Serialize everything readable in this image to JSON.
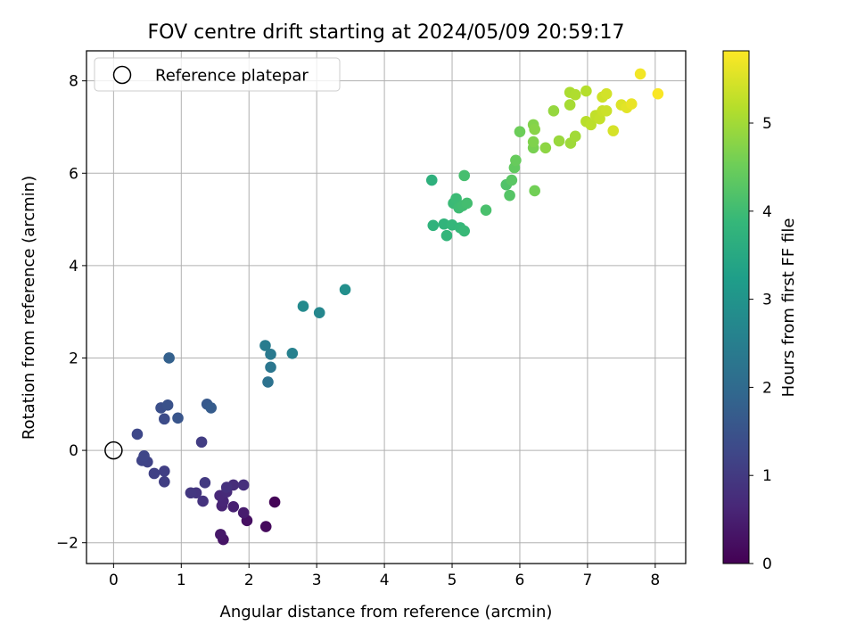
{
  "chart_data": {
    "type": "scatter",
    "title": "FOV centre drift starting at 2024/05/09 20:59:17",
    "xlabel": "Angular distance from reference (arcmin)",
    "ylabel": "Rotation from reference (arcmin)",
    "xlim": [
      -0.4,
      8.45
    ],
    "ylim": [
      -2.45,
      8.65
    ],
    "xticks": [
      0,
      1,
      2,
      3,
      4,
      5,
      6,
      7,
      8
    ],
    "yticks": [
      -2,
      0,
      2,
      4,
      6,
      8
    ],
    "xtick_labels": [
      "0",
      "1",
      "2",
      "3",
      "4",
      "5",
      "6",
      "7",
      "8"
    ],
    "ytick_labels": [
      "−2",
      "0",
      "2",
      "4",
      "6",
      "8"
    ],
    "grid": true,
    "legend": {
      "position": "top-left",
      "entries": [
        "Reference platepar"
      ]
    },
    "reference_point": {
      "x": 0,
      "y": 0
    },
    "colorbar": {
      "label": "Hours from first FF file",
      "colormap": "viridis",
      "range": [
        0,
        5.82
      ],
      "ticks": [
        0,
        1,
        2,
        3,
        4,
        5
      ],
      "tick_labels": [
        "0",
        "1",
        "2",
        "3",
        "4",
        "5"
      ]
    },
    "points": [
      {
        "x": 2.38,
        "y": -1.12,
        "t": 0.05
      },
      {
        "x": 2.25,
        "y": -1.65,
        "t": 0.15
      },
      {
        "x": 1.97,
        "y": -1.52,
        "t": 0.25
      },
      {
        "x": 1.62,
        "y": -1.93,
        "t": 0.32
      },
      {
        "x": 1.58,
        "y": -1.82,
        "t": 0.38
      },
      {
        "x": 1.92,
        "y": -1.35,
        "t": 0.45
      },
      {
        "x": 1.77,
        "y": -1.22,
        "t": 0.52
      },
      {
        "x": 1.6,
        "y": -1.2,
        "t": 0.58
      },
      {
        "x": 1.62,
        "y": -1.1,
        "t": 0.62
      },
      {
        "x": 1.57,
        "y": -0.98,
        "t": 0.66
      },
      {
        "x": 1.67,
        "y": -0.9,
        "t": 0.7
      },
      {
        "x": 1.77,
        "y": -0.75,
        "t": 0.74
      },
      {
        "x": 1.92,
        "y": -0.75,
        "t": 0.78
      },
      {
        "x": 1.67,
        "y": -0.8,
        "t": 0.82
      },
      {
        "x": 1.32,
        "y": -1.1,
        "t": 0.86
      },
      {
        "x": 1.22,
        "y": -0.92,
        "t": 0.9
      },
      {
        "x": 1.14,
        "y": -0.92,
        "t": 0.95
      },
      {
        "x": 1.35,
        "y": -0.7,
        "t": 1.0
      },
      {
        "x": 1.3,
        "y": 0.18,
        "t": 1.05
      },
      {
        "x": 0.75,
        "y": -0.68,
        "t": 1.08
      },
      {
        "x": 0.75,
        "y": -0.45,
        "t": 1.1
      },
      {
        "x": 0.6,
        "y": -0.5,
        "t": 1.14
      },
      {
        "x": 0.5,
        "y": -0.25,
        "t": 1.17
      },
      {
        "x": 0.42,
        "y": -0.22,
        "t": 1.2
      },
      {
        "x": 0.45,
        "y": -0.12,
        "t": 1.24
      },
      {
        "x": 0.35,
        "y": 0.35,
        "t": 1.28
      },
      {
        "x": 0.75,
        "y": 0.68,
        "t": 1.35
      },
      {
        "x": 0.7,
        "y": 0.92,
        "t": 1.42
      },
      {
        "x": 0.8,
        "y": 0.98,
        "t": 1.48
      },
      {
        "x": 0.95,
        "y": 0.7,
        "t": 1.54
      },
      {
        "x": 1.38,
        "y": 1.0,
        "t": 1.62
      },
      {
        "x": 1.44,
        "y": 0.92,
        "t": 1.7
      },
      {
        "x": 0.82,
        "y": 2.0,
        "t": 1.8
      },
      {
        "x": 2.28,
        "y": 1.48,
        "t": 2.2
      },
      {
        "x": 2.32,
        "y": 1.8,
        "t": 2.28
      },
      {
        "x": 2.32,
        "y": 2.08,
        "t": 2.36
      },
      {
        "x": 2.24,
        "y": 2.27,
        "t": 2.44
      },
      {
        "x": 2.64,
        "y": 2.1,
        "t": 2.55
      },
      {
        "x": 3.04,
        "y": 2.98,
        "t": 2.7
      },
      {
        "x": 2.8,
        "y": 3.12,
        "t": 2.78
      },
      {
        "x": 3.42,
        "y": 3.48,
        "t": 2.88
      },
      {
        "x": 4.7,
        "y": 5.85,
        "t": 3.7
      },
      {
        "x": 4.72,
        "y": 4.87,
        "t": 3.75
      },
      {
        "x": 4.88,
        "y": 4.9,
        "t": 3.78
      },
      {
        "x": 4.92,
        "y": 4.65,
        "t": 3.82
      },
      {
        "x": 5.0,
        "y": 4.88,
        "t": 3.85
      },
      {
        "x": 5.12,
        "y": 4.82,
        "t": 3.88
      },
      {
        "x": 5.18,
        "y": 4.75,
        "t": 3.91
      },
      {
        "x": 5.02,
        "y": 5.35,
        "t": 3.94
      },
      {
        "x": 5.06,
        "y": 5.45,
        "t": 3.96
      },
      {
        "x": 5.1,
        "y": 5.25,
        "t": 3.99
      },
      {
        "x": 5.16,
        "y": 5.3,
        "t": 4.02
      },
      {
        "x": 5.22,
        "y": 5.35,
        "t": 4.05
      },
      {
        "x": 5.18,
        "y": 5.95,
        "t": 4.08
      },
      {
        "x": 5.5,
        "y": 5.2,
        "t": 4.12
      },
      {
        "x": 5.8,
        "y": 5.75,
        "t": 4.2
      },
      {
        "x": 5.85,
        "y": 5.52,
        "t": 4.25
      },
      {
        "x": 5.88,
        "y": 5.85,
        "t": 4.3
      },
      {
        "x": 5.92,
        "y": 6.12,
        "t": 4.38
      },
      {
        "x": 5.94,
        "y": 6.28,
        "t": 4.45
      },
      {
        "x": 6.0,
        "y": 6.9,
        "t": 4.5
      },
      {
        "x": 6.22,
        "y": 5.62,
        "t": 4.55
      },
      {
        "x": 6.2,
        "y": 6.55,
        "t": 4.62
      },
      {
        "x": 6.2,
        "y": 6.68,
        "t": 4.68
      },
      {
        "x": 6.2,
        "y": 7.05,
        "t": 4.72
      },
      {
        "x": 6.22,
        "y": 6.95,
        "t": 4.76
      },
      {
        "x": 6.38,
        "y": 6.55,
        "t": 4.82
      },
      {
        "x": 6.5,
        "y": 7.35,
        "t": 4.88
      },
      {
        "x": 6.58,
        "y": 6.7,
        "t": 4.92
      },
      {
        "x": 6.75,
        "y": 6.65,
        "t": 4.96
      },
      {
        "x": 6.82,
        "y": 6.8,
        "t": 5.0
      },
      {
        "x": 6.74,
        "y": 7.48,
        "t": 5.04
      },
      {
        "x": 6.74,
        "y": 7.75,
        "t": 5.08
      },
      {
        "x": 6.82,
        "y": 7.7,
        "t": 5.12
      },
      {
        "x": 6.98,
        "y": 7.78,
        "t": 5.16
      },
      {
        "x": 6.98,
        "y": 7.12,
        "t": 5.2
      },
      {
        "x": 7.05,
        "y": 7.05,
        "t": 5.24
      },
      {
        "x": 7.12,
        "y": 7.25,
        "t": 5.28
      },
      {
        "x": 7.18,
        "y": 7.18,
        "t": 5.31
      },
      {
        "x": 7.22,
        "y": 7.35,
        "t": 5.34
      },
      {
        "x": 7.28,
        "y": 7.35,
        "t": 5.37
      },
      {
        "x": 7.22,
        "y": 7.65,
        "t": 5.4
      },
      {
        "x": 7.28,
        "y": 7.72,
        "t": 5.43
      },
      {
        "x": 7.38,
        "y": 6.92,
        "t": 5.46
      },
      {
        "x": 7.5,
        "y": 7.48,
        "t": 5.52
      },
      {
        "x": 7.58,
        "y": 7.42,
        "t": 5.58
      },
      {
        "x": 7.65,
        "y": 7.5,
        "t": 5.64
      },
      {
        "x": 7.78,
        "y": 8.15,
        "t": 5.72
      },
      {
        "x": 8.04,
        "y": 7.72,
        "t": 5.78
      }
    ]
  }
}
